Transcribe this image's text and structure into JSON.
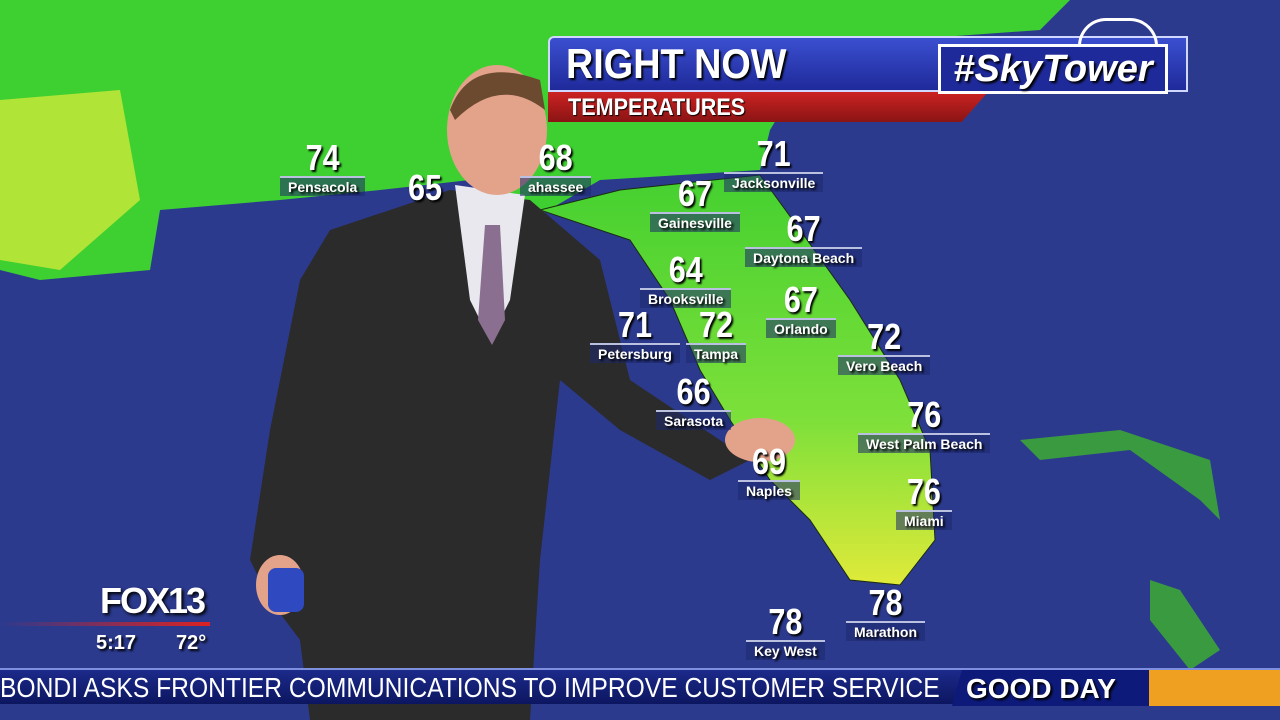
{
  "header": {
    "title": "RIGHT NOW",
    "subtitle": "TEMPERATURES",
    "brand": "#SkyTower"
  },
  "colors": {
    "ocean": "#2c3a8e",
    "land": "#4fd63a",
    "land_warm": "#d8e83a",
    "header_blue": "#2a3ab8",
    "header_red": "#b31c1c",
    "ticker": "#0f1a70",
    "accent_orange": "#f0a020"
  },
  "cities": [
    {
      "temp": "74",
      "name": "Pensacola"
    },
    {
      "temp": "65",
      "name": ""
    },
    {
      "temp": "68",
      "name": "ahassee"
    },
    {
      "temp": "71",
      "name": "Jacksonville"
    },
    {
      "temp": "67",
      "name": "Gainesville"
    },
    {
      "temp": "67",
      "name": "Daytona Beach"
    },
    {
      "temp": "64",
      "name": "Brooksville"
    },
    {
      "temp": "67",
      "name": "Orlando"
    },
    {
      "temp": "71",
      "name": "Petersburg"
    },
    {
      "temp": "72",
      "name": "Tampa"
    },
    {
      "temp": "72",
      "name": "Vero Beach"
    },
    {
      "temp": "66",
      "name": "Sarasota"
    },
    {
      "temp": "76",
      "name": "West Palm Beach"
    },
    {
      "temp": "69",
      "name": "Naples"
    },
    {
      "temp": "76",
      "name": "Miami"
    },
    {
      "temp": "78",
      "name": "Key West"
    },
    {
      "temp": "78",
      "name": "Marathon"
    }
  ],
  "station_bug": {
    "logo": "FOX13",
    "time": "5:17",
    "temperature": "72°"
  },
  "ticker": {
    "headline": "BONDI ASKS FRONTIER COMMUNICATIONS TO IMPROVE CUSTOMER SERVICE",
    "show": "GOOD DAY"
  }
}
